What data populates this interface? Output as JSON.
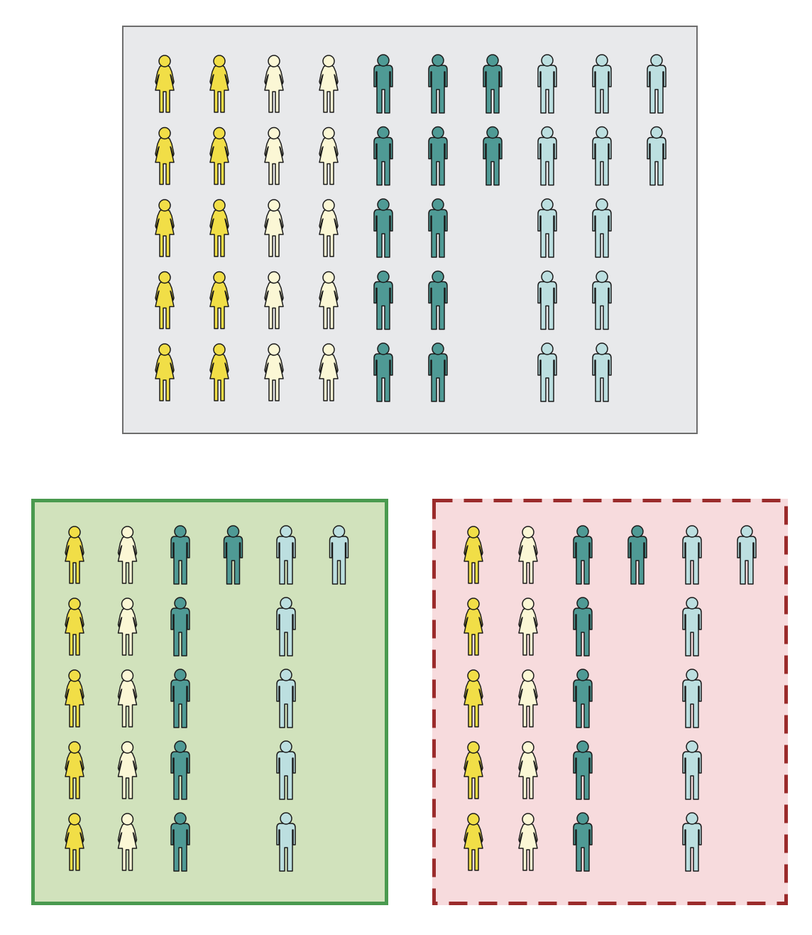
{
  "palette": {
    "female_gold": "#f1de47",
    "female_cream": "#fbf7d5",
    "male_teal": "#4f9a95",
    "male_lightblue": "#bcdfe0",
    "outline": "#1a1a1a"
  },
  "groups": [
    {
      "name": "population",
      "background": "#e8e9eb",
      "border": "#6d6d6d",
      "border_style": "solid",
      "column_counts": [
        {
          "figure": "female",
          "color": "female_gold",
          "count": 5
        },
        {
          "figure": "female",
          "color": "female_gold",
          "count": 5
        },
        {
          "figure": "female",
          "color": "female_cream",
          "count": 5
        },
        {
          "figure": "female",
          "color": "female_cream",
          "count": 5
        },
        {
          "figure": "male",
          "color": "male_teal",
          "count": 5
        },
        {
          "figure": "male",
          "color": "male_teal",
          "count": 5
        },
        {
          "figure": "male",
          "color": "male_teal",
          "count": 2
        },
        {
          "figure": "male",
          "color": "male_lightblue",
          "count": 5
        },
        {
          "figure": "male",
          "color": "male_lightblue",
          "count": 5
        },
        {
          "figure": "male",
          "color": "male_lightblue",
          "count": 2
        }
      ]
    },
    {
      "name": "representative-sample",
      "background": "#d1e2bc",
      "border": "#4a9a4f",
      "border_style": "solid",
      "column_counts": [
        {
          "figure": "female",
          "color": "female_gold",
          "count": 5
        },
        {
          "figure": "female",
          "color": "female_cream",
          "count": 5
        },
        {
          "figure": "male",
          "color": "male_teal",
          "count": 5
        },
        {
          "figure": "male",
          "color": "male_teal",
          "count": 1
        },
        {
          "figure": "male",
          "color": "male_lightblue",
          "count": 5
        },
        {
          "figure": "male",
          "color": "male_lightblue",
          "count": 1
        }
      ]
    },
    {
      "name": "biased-sample",
      "background": "#f7dbdd",
      "border": "#9b2b2b",
      "border_style": "dashed",
      "column_counts": [
        {
          "figure": "female",
          "color": "female_gold",
          "count": 5
        },
        {
          "figure": "female",
          "color": "female_cream",
          "count": 5
        },
        {
          "figure": "male",
          "color": "male_teal",
          "count": 5
        },
        {
          "figure": "male",
          "color": "male_teal",
          "count": 1
        },
        {
          "figure": "male",
          "color": "male_lightblue",
          "count": 5
        },
        {
          "figure": "male",
          "color": "male_lightblue",
          "count": 1
        }
      ]
    }
  ]
}
